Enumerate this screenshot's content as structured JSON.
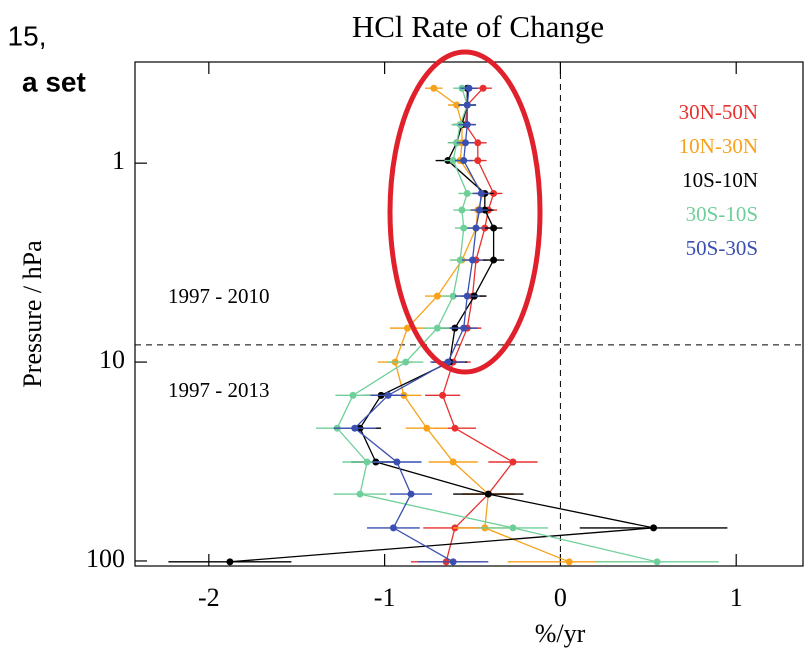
{
  "slide_fragments": [
    ", 15,",
    "a set"
  ],
  "chart_data": {
    "type": "line",
    "title": "HCl Rate of Change",
    "x_label": "%/yr",
    "y_label": "Pressure / hPa",
    "log_y": true,
    "y_inverted": true,
    "xlim": [
      -2.42,
      1.38
    ],
    "ylim": [
      0.31,
      106
    ],
    "xticks": [
      -2,
      -1,
      0,
      1
    ],
    "yticks": [
      1,
      10,
      100
    ],
    "reference_lines": {
      "pressure": 8.2,
      "rate": 0
    },
    "period_labels": [
      "1997 - 2010",
      "1997 - 2013"
    ],
    "legend": "top-right",
    "pressure": [
      0.42,
      0.51,
      0.64,
      0.79,
      0.97,
      1.42,
      1.72,
      2.12,
      3.07,
      4.66,
      6.75,
      10,
      14.7,
      21.5,
      31.8,
      46.1,
      68.2,
      101
    ],
    "series": [
      {
        "name": "30N-50N",
        "color": "#e8312f",
        "values": [
          -0.44,
          -0.53,
          -0.54,
          -0.47,
          -0.47,
          -0.38,
          -0.41,
          -0.43,
          -0.48,
          -0.5,
          -0.53,
          -0.61,
          -0.67,
          -0.6,
          -0.27,
          -0.41,
          -0.6,
          -0.65
        ],
        "errors": [
          0.05,
          0.05,
          0.05,
          0.05,
          0.05,
          0.05,
          0.05,
          0.05,
          0.06,
          0.07,
          0.08,
          0.1,
          0.1,
          0.12,
          0.14,
          0.15,
          0.18,
          0.2
        ]
      },
      {
        "name": "10N-30N",
        "color": "#f7a21b",
        "values": [
          -0.72,
          -0.59,
          -0.56,
          -0.56,
          -0.57,
          -0.44,
          -0.47,
          -0.48,
          -0.56,
          -0.7,
          -0.87,
          -0.94,
          -0.89,
          -0.76,
          -0.61,
          -0.41,
          -0.43,
          0.05
        ],
        "errors": [
          0.05,
          0.05,
          0.05,
          0.05,
          0.05,
          0.05,
          0.05,
          0.05,
          0.06,
          0.07,
          0.1,
          0.1,
          0.1,
          0.12,
          0.14,
          0.15,
          0.18,
          0.35
        ]
      },
      {
        "name": "10S-10N",
        "color": "#000000",
        "values": [
          -0.53,
          -0.53,
          -0.56,
          -0.59,
          -0.64,
          -0.43,
          -0.43,
          -0.38,
          -0.38,
          -0.49,
          -0.6,
          -0.63,
          -1.02,
          -1.14,
          -1.05,
          -0.41,
          0.53,
          -1.88
        ],
        "errors": [
          0.05,
          0.05,
          0.05,
          0.05,
          0.07,
          0.05,
          0.05,
          0.05,
          0.06,
          0.07,
          0.08,
          0.1,
          0.1,
          0.12,
          0.14,
          0.2,
          0.42,
          0.35
        ]
      },
      {
        "name": "30S-10S",
        "color": "#6fcf9a",
        "values": [
          -0.56,
          -0.53,
          -0.57,
          -0.59,
          -0.61,
          -0.53,
          -0.56,
          -0.55,
          -0.57,
          -0.61,
          -0.7,
          -0.88,
          -1.18,
          -1.27,
          -1.1,
          -1.14,
          -0.27,
          0.55
        ],
        "errors": [
          0.05,
          0.05,
          0.05,
          0.05,
          0.05,
          0.05,
          0.05,
          0.05,
          0.06,
          0.07,
          0.08,
          0.1,
          0.1,
          0.12,
          0.14,
          0.15,
          0.2,
          0.35
        ]
      },
      {
        "name": "50S-30S",
        "color": "#3a4fb0",
        "values": [
          -0.52,
          -0.53,
          -0.53,
          -0.54,
          -0.55,
          -0.45,
          -0.46,
          -0.48,
          -0.5,
          -0.53,
          -0.55,
          -0.64,
          -0.98,
          -1.17,
          -0.93,
          -0.85,
          -0.95,
          -0.61
        ],
        "errors": [
          0.05,
          0.05,
          0.05,
          0.05,
          0.05,
          0.05,
          0.05,
          0.05,
          0.06,
          0.07,
          0.08,
          0.1,
          0.1,
          0.12,
          0.14,
          0.12,
          0.15,
          0.2
        ]
      }
    ]
  }
}
